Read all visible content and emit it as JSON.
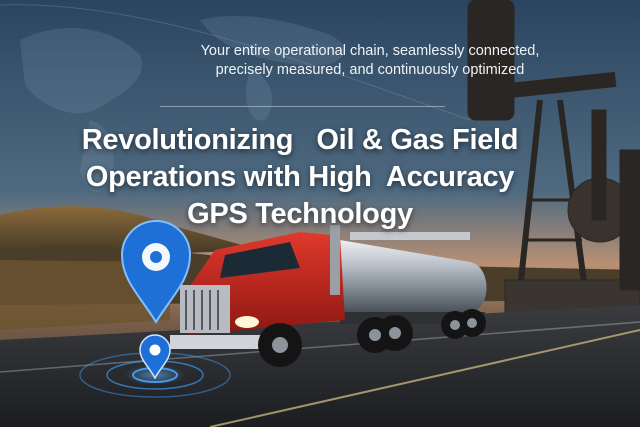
{
  "tagline": {
    "line1": "Your entire operational chain, seamlessly connected,",
    "line2": "precisely measured, and continuously optimized"
  },
  "headline": {
    "line1": "Revolutionizing   Oil & Gas Field",
    "line2": "Operations with High  Accuracy",
    "line3": "GPS Technology"
  },
  "colors": {
    "accent": "#1e6fd6",
    "truck_red": "#c4261d",
    "tank_silver": "#b8bec6",
    "sky_top": "#2d4a66",
    "sky_horizon": "#d9a57a"
  },
  "icons": [
    "map-pin-icon",
    "small-map-pin-icon",
    "globe-map-graphic",
    "pumpjack-graphic",
    "tanker-truck-graphic"
  ]
}
